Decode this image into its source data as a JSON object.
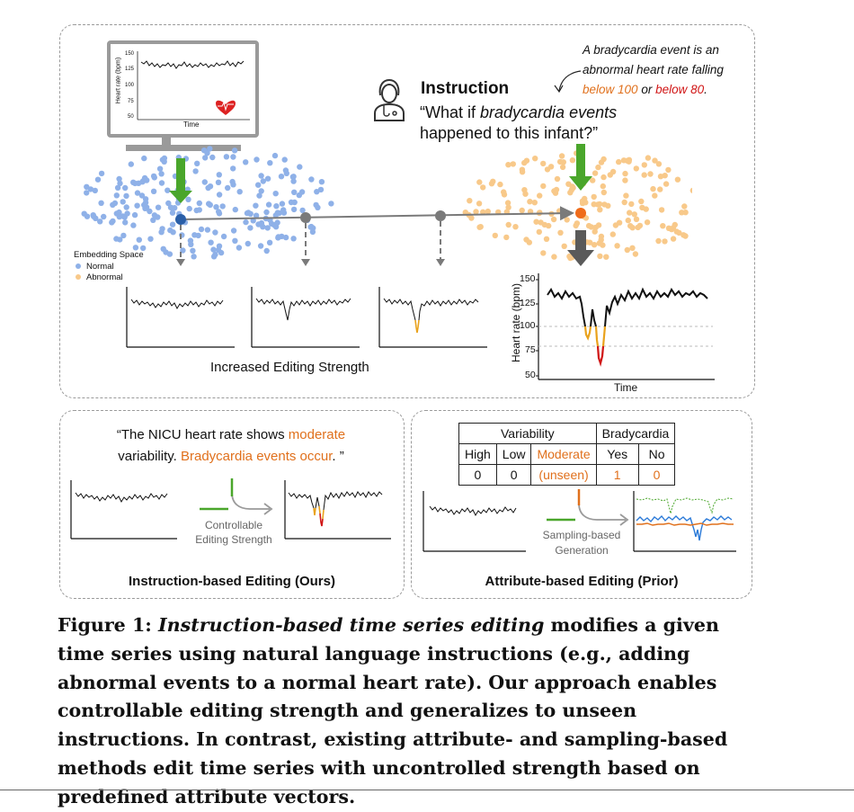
{
  "colors": {
    "normal": "#8fb1e8",
    "abnormal": "#f8c98a",
    "green": "#4aa62b",
    "orange": "#e0701c",
    "red": "#d01515",
    "blue_dot": "#2a5fa8",
    "orange_dot": "#ef6b1a"
  },
  "top_panel": {
    "monitor": {
      "y_label": "Heart rate (bpm)",
      "y_ticks": [
        "150",
        "125",
        "100",
        "75",
        "50"
      ],
      "x_label": "Time",
      "icon": "heart-pulse-icon"
    },
    "instruction": {
      "icon": "doctor-icon",
      "title": "Instruction",
      "quote_prefix": "“What if ",
      "quote_italic": "bradycardia events",
      "quote_line2": "happened to this infant?”"
    },
    "note": {
      "line1": "A bradycardia event is an",
      "line2": "abnormal heart rate falling",
      "below100": "below 100",
      "or": " or ",
      "below80": "below 80",
      "period": "."
    },
    "legend": {
      "title": "Embedding Space",
      "normal": "Normal",
      "abnormal": "Abnormal"
    },
    "strength_label": "Increased Editing Strength",
    "big_chart": {
      "y_label": "Heart rate (bpm)",
      "y_ticks": [
        "150",
        "125",
        "100",
        "75",
        "50"
      ],
      "x_label": "Time"
    }
  },
  "left_panel": {
    "quote_a": "“The NICU heart rate shows ",
    "quote_b": "moderate",
    "quote_c": "variability. ",
    "quote_d": "Bradycardia events occur",
    "quote_e": ". ”",
    "arrow_label1": "Controllable",
    "arrow_label2": "Editing Strength",
    "title": "Instruction-based Editing (Ours)"
  },
  "right_panel": {
    "table": {
      "group1": "Variability",
      "group2": "Bradycardia",
      "headers": [
        "High",
        "Low",
        "Moderate",
        "Yes",
        "No"
      ],
      "values": [
        "0",
        "0",
        "(unseen)",
        "1",
        "0"
      ]
    },
    "arrow_label1": "Sampling-based",
    "arrow_label2": "Generation",
    "title": "Attribute-based Editing (Prior)"
  },
  "caption": {
    "fig": "Figure 1: ",
    "lead": "Instruction-based time series editing",
    "text": " modifies a given time series using natural language instructions (e.g., adding abnormal events to a normal heart rate). Our approach enables controllable editing strength and generalizes to unseen instructions. In contrast, existing attribute- and sampling-based methods edit time series with uncontrolled strength based on predefined attribute vectors."
  }
}
